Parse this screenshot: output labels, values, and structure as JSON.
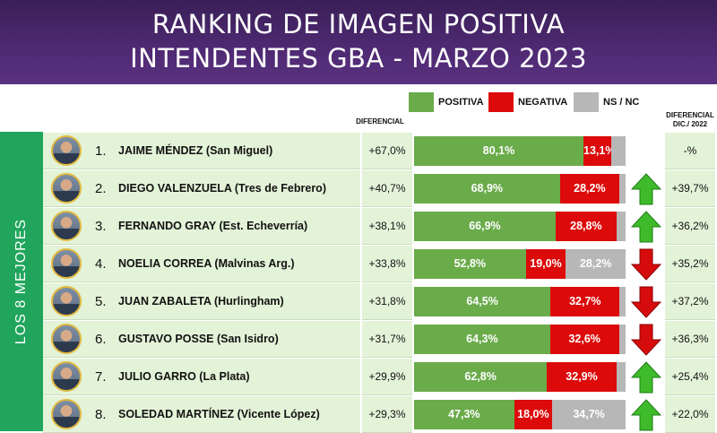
{
  "title_line1": "RANKING DE IMAGEN POSITIVA",
  "title_line2": "INTENDENTES GBA - MARZO 2023",
  "sidebar_label": "LOS 8 MEJORES",
  "column_headers": {
    "diferencial": "DIFERENCIAL",
    "diferencial_dic_line1": "DIFERENCIAL",
    "diferencial_dic_line2": "DIC./ 2022"
  },
  "colors": {
    "positiva": "#6aab4a",
    "negativa": "#dc0a0a",
    "ns_nc": "#b7b7b7",
    "arrow_up": "#3fba2a",
    "arrow_down": "#d60c0c",
    "header_bg": "#4f2a73",
    "sidebar_bg": "#21a55d"
  },
  "chart_data": {
    "type": "bar",
    "orientation": "horizontal",
    "stacked": true,
    "title": "RANKING DE IMAGEN POSITIVA INTENDENTES GBA - MARZO 2023",
    "legend": [
      "POSITIVA",
      "NEGATIVA",
      "NS / NC"
    ],
    "legend_placement": "top",
    "rows": [
      {
        "rank": "1.",
        "name": "JAIME MÉNDEZ (San Miguel)",
        "diferencial": "+67,0%",
        "positiva": 80.1,
        "negativa": 13.1,
        "ns_nc": 6.8,
        "positiva_label": "80,1%",
        "negativa_label": "13,1%",
        "ns_label": "",
        "trend": "none",
        "dif_dic_2022": "-%"
      },
      {
        "rank": "2.",
        "name": "DIEGO VALENZUELA (Tres de Febrero)",
        "diferencial": "+40,7%",
        "positiva": 68.9,
        "negativa": 28.2,
        "ns_nc": 2.9,
        "positiva_label": "68,9%",
        "negativa_label": "28,2%",
        "ns_label": "",
        "trend": "up",
        "dif_dic_2022": "+39,7%"
      },
      {
        "rank": "3.",
        "name": "FERNANDO GRAY (Est. Echeverría)",
        "diferencial": "+38,1%",
        "positiva": 66.9,
        "negativa": 28.8,
        "ns_nc": 4.3,
        "positiva_label": "66,9%",
        "negativa_label": "28,8%",
        "ns_label": "",
        "trend": "up",
        "dif_dic_2022": "+36,2%"
      },
      {
        "rank": "4.",
        "name": "NOELIA CORREA (Malvinas Arg.)",
        "diferencial": "+33,8%",
        "positiva": 52.8,
        "negativa": 19.0,
        "ns_nc": 28.2,
        "positiva_label": "52,8%",
        "negativa_label": "19,0%",
        "ns_label": "28,2%",
        "trend": "down",
        "dif_dic_2022": "+35,2%"
      },
      {
        "rank": "5.",
        "name": "JUAN ZABALETA (Hurlingham)",
        "diferencial": "+31,8%",
        "positiva": 64.5,
        "negativa": 32.7,
        "ns_nc": 2.8,
        "positiva_label": "64,5%",
        "negativa_label": "32,7%",
        "ns_label": "",
        "trend": "down",
        "dif_dic_2022": "+37,2%"
      },
      {
        "rank": "6.",
        "name": "GUSTAVO POSSE (San Isidro)",
        "diferencial": "+31,7%",
        "positiva": 64.3,
        "negativa": 32.6,
        "ns_nc": 3.1,
        "positiva_label": "64,3%",
        "negativa_label": "32,6%",
        "ns_label": "",
        "trend": "down",
        "dif_dic_2022": "+36,3%"
      },
      {
        "rank": "7.",
        "name": "JULIO GARRO (La Plata)",
        "diferencial": "+29,9%",
        "positiva": 62.8,
        "negativa": 32.9,
        "ns_nc": 4.3,
        "positiva_label": "62,8%",
        "negativa_label": "32,9%",
        "ns_label": "",
        "trend": "up",
        "dif_dic_2022": "+25,4%"
      },
      {
        "rank": "8.",
        "name": "SOLEDAD MARTÍNEZ (Vicente López)",
        "diferencial": "+29,3%",
        "positiva": 47.3,
        "negativa": 18.0,
        "ns_nc": 34.7,
        "positiva_label": "47,3%",
        "negativa_label": "18,0%",
        "ns_label": "34,7%",
        "trend": "up",
        "dif_dic_2022": "+22,0%"
      }
    ]
  }
}
